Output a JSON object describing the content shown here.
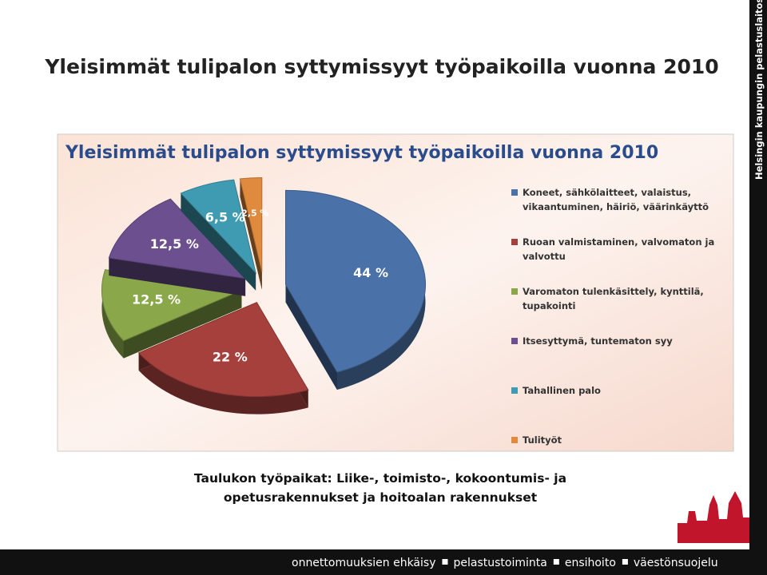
{
  "slide": {
    "title": "Yleisimmät tulipalon syttymissyyt työpaikoilla vuonna 2010",
    "side_label": "Helsingin kaupungin pelastuslaitos",
    "caption": [
      "Taulukon työpaikat: Liike-, toimisto-, kokoontumis- ja",
      "opetusrakennukset ja hoitoalan rakennukset"
    ],
    "footer": [
      "onnettomuuksien ehkäisy",
      "pelastustoiminta",
      "ensihoito",
      "väestönsuojelu"
    ]
  },
  "chart_data": {
    "type": "pie",
    "title": "Yleisimmät tulipalon syttymissyyt työpaikoilla vuonna 2010",
    "categories": [
      "Koneet, sähkölaitteet, valaistus, vikaantuminen, häiriö, väärinkäyttö",
      "Ruoan valmistaminen, valvomaton ja valvottu",
      "Varomaton tulenkäsittely, kynttilä, tupakointi",
      "Itsesyttymä, tuntematon syy",
      "Tahallinen palo",
      "Tulityöt"
    ],
    "values": [
      44,
      22,
      12.5,
      12.5,
      6.5,
      2.5
    ],
    "value_labels": [
      "44 %",
      "22 %",
      "12,5 %",
      "12,5 %",
      "6,5 %",
      "2,5 %"
    ],
    "colors": [
      "#4a72a8",
      "#a6403d",
      "#8aa84a",
      "#6c4f8e",
      "#3f9bb1",
      "#e08a3e"
    ],
    "legend": "right"
  }
}
